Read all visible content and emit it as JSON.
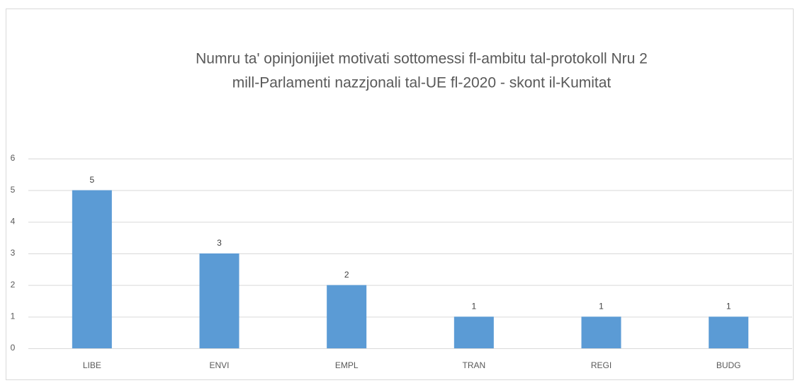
{
  "chart_data": {
    "type": "bar",
    "title": [
      "Numru ta' opinjonijiet motivati  sottomessi fl-ambitu tal-protokoll Nru 2",
      "mill-Parlamenti  nazzjonali tal-UE fl-2020 - skont il-Kumitat"
    ],
    "categories": [
      "LIBE",
      "ENVI",
      "EMPL",
      "TRAN",
      "REGI",
      "BUDG"
    ],
    "values": [
      5,
      3,
      2,
      1,
      1,
      1
    ],
    "color": "#5b9bd5",
    "ylim": [
      0,
      6
    ],
    "yticks": [
      0,
      1,
      2,
      3,
      4,
      5,
      6
    ],
    "grid": true
  }
}
